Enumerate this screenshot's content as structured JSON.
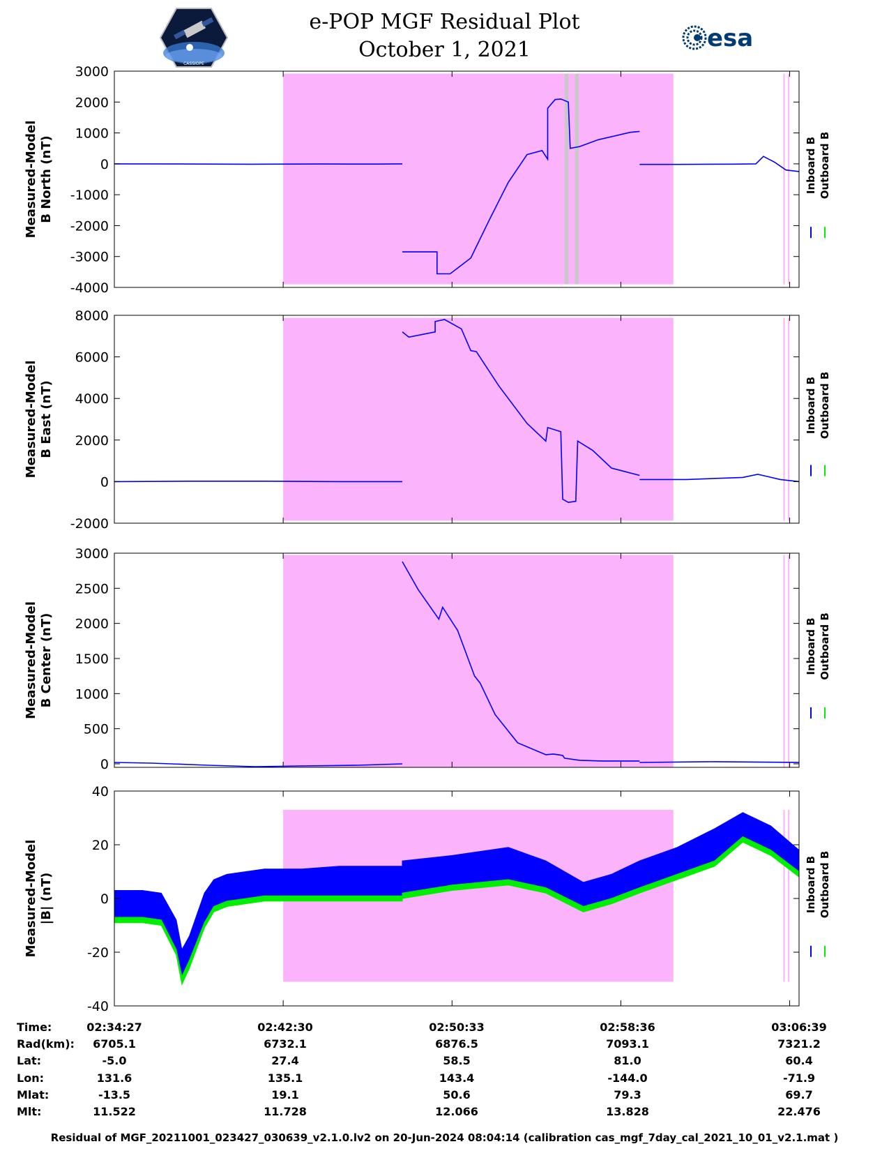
{
  "header": {
    "title_line1": "e-POP MGF Residual Plot",
    "title_line2": "October 1, 2021",
    "left_logo_text": "CASSIOPE",
    "right_logo_text": "esa"
  },
  "colors": {
    "shade": "#fbb3fb",
    "inboard": "#0000ff",
    "outboard": "#00ee00",
    "gap": "#c8c8c8"
  },
  "chart_data": [
    {
      "type": "line",
      "ylabel_line1": "Measured-Model",
      "ylabel_line2": "B North (nT)",
      "ylim": [
        -4000,
        3000
      ],
      "yticks": [
        3000,
        2000,
        1000,
        0,
        -1000,
        -2000,
        -3000,
        -4000
      ],
      "shade_ylim": [
        -3900,
        2920
      ],
      "legend": [
        "Inboard B",
        "Outboard B"
      ],
      "series": [
        {
          "name": "Inboard B",
          "color": "#0000ff",
          "x": [
            0,
            3.6,
            7.3,
            11.0,
            14.0,
            15.35
          ],
          "y": [
            0,
            -5,
            -12,
            -6,
            -8,
            0
          ]
        },
        {
          "name": "Inboard B",
          "color": "#0000ff",
          "x": [
            15.35,
            17.2,
            17.2,
            17.9,
            19.0,
            20.0,
            21.0,
            22.0,
            22.8,
            23.1,
            23.1,
            23.5,
            23.8,
            24.2,
            24.3,
            24.8,
            25.8,
            27.0,
            27.5,
            28.0
          ],
          "y": [
            -2850,
            -2850,
            -3560,
            -3560,
            -3050,
            -1800,
            -600,
            300,
            430,
            150,
            1800,
            2080,
            2100,
            2000,
            500,
            560,
            780,
            950,
            1020,
            1050
          ]
        },
        {
          "name": "Inboard B",
          "color": "#0000ff",
          "x": [
            28.0,
            30.0,
            33.0,
            34.2,
            34.6,
            35.2,
            35.8,
            36.5
          ],
          "y": [
            -20,
            -20,
            -10,
            0,
            240,
            50,
            -200,
            -250
          ]
        }
      ]
    },
    {
      "type": "line",
      "ylabel_line1": "Measured-Model",
      "ylabel_line2": "B East (nT)",
      "ylim": [
        -2000,
        8000
      ],
      "yticks": [
        8000,
        6000,
        4000,
        2000,
        0,
        -2000
      ],
      "shade_ylim": [
        -1880,
        7880
      ],
      "legend": [
        "Inboard B",
        "Outboard B"
      ],
      "series": [
        {
          "name": "Inboard B",
          "color": "#0000ff",
          "x": [
            0,
            4.0,
            8.0,
            12.0,
            15.35
          ],
          "y": [
            0,
            20,
            20,
            0,
            0
          ]
        },
        {
          "name": "Inboard B",
          "color": "#0000ff",
          "x": [
            15.35,
            15.7,
            17.1,
            17.1,
            17.6,
            18.5,
            19.0,
            19.3,
            20.5,
            22.0,
            23.0,
            23.1,
            23.8,
            23.9,
            24.2,
            24.6,
            24.7,
            25.5,
            26.5,
            28.0
          ],
          "y": [
            7200,
            6950,
            7200,
            7700,
            7800,
            7350,
            6300,
            6250,
            4600,
            2800,
            1950,
            2600,
            2400,
            -850,
            -1000,
            -950,
            1950,
            1500,
            650,
            300
          ]
        },
        {
          "name": "Inboard B",
          "color": "#0000ff",
          "x": [
            28.0,
            30.5,
            33.5,
            34.3,
            34.8,
            35.5,
            36.5
          ],
          "y": [
            100,
            100,
            200,
            350,
            250,
            100,
            0
          ]
        }
      ]
    },
    {
      "type": "line",
      "ylabel_line1": "Measured-Model",
      "ylabel_line2": "B Center (nT)",
      "ylim": [
        -50,
        3000
      ],
      "yticks": [
        3000,
        2500,
        2000,
        1500,
        1000,
        500,
        0
      ],
      "shade_ylim": [
        -50,
        2975
      ],
      "legend": [
        "Inboard B",
        "Outboard B"
      ],
      "series": [
        {
          "name": "Inboard B",
          "color": "#0000ff",
          "x": [
            0,
            2.0,
            5.0,
            7.5,
            10.0,
            13.0,
            15.35
          ],
          "y": [
            20,
            10,
            -20,
            -40,
            -30,
            -20,
            0
          ]
        },
        {
          "name": "Inboard B",
          "color": "#0000ff",
          "x": [
            15.35,
            16.2,
            17.3,
            17.5,
            18.3,
            19.2,
            19.5,
            20.3,
            21.5,
            23.0,
            23.4,
            23.9,
            24.0,
            24.8,
            26.0,
            28.0
          ],
          "y": [
            2880,
            2480,
            2060,
            2230,
            1900,
            1250,
            1150,
            700,
            300,
            130,
            140,
            120,
            80,
            50,
            40,
            40
          ]
        },
        {
          "name": "Inboard B",
          "color": "#0000ff",
          "x": [
            28.0,
            32.0,
            36.5
          ],
          "y": [
            20,
            30,
            20
          ]
        }
      ]
    },
    {
      "type": "area",
      "ylabel_line1": "Measured-Model",
      "ylabel_line2": "|B| (nT)",
      "ylim": [
        -40,
        40
      ],
      "yticks": [
        40,
        20,
        0,
        -20,
        -40
      ],
      "shade_ylim": [
        -31,
        33
      ],
      "legend": [
        "Inboard B",
        "Outboard B"
      ],
      "series": [
        {
          "name": "Inboard B",
          "color": "#0000ff",
          "x": [
            0,
            1.5,
            2.5,
            3.3,
            3.6,
            4.0,
            4.8,
            5.3,
            6.0,
            8.0,
            10.0,
            12.0,
            15.35
          ],
          "upper": [
            3,
            3,
            2,
            -8,
            -19,
            -14,
            2,
            7,
            9,
            11,
            11,
            12,
            12
          ],
          "lower": [
            -8,
            -8,
            -9,
            -20,
            -30,
            -24,
            -10,
            -4,
            -2,
            0,
            0,
            0,
            0
          ]
        },
        {
          "name": "Inboard B",
          "color": "#0000ff",
          "x": [
            15.35,
            18.0,
            21.0,
            23.0,
            25.0,
            26.5,
            28.0,
            30.0,
            32.0,
            33.5,
            35.0,
            36.5
          ],
          "upper": [
            14,
            16,
            19,
            14,
            6,
            9,
            14,
            19,
            26,
            32,
            27,
            18
          ],
          "lower": [
            1,
            4,
            6,
            3,
            -4,
            -1,
            3,
            8,
            13,
            22,
            17,
            9
          ]
        },
        {
          "name": "Outboard B",
          "color": "#00ee00",
          "x": [
            0,
            1.5,
            2.5,
            3.3,
            3.6,
            4.0,
            4.8,
            5.3,
            6.0,
            8.0,
            10.0,
            12.0,
            15.35
          ],
          "upper": [
            -7,
            -7,
            -8,
            -19,
            -29,
            -23,
            -9,
            -3,
            -1,
            1,
            1,
            1,
            1
          ],
          "lower": [
            -9,
            -9,
            -10,
            -21,
            -32,
            -26,
            -11,
            -5,
            -3,
            -1,
            -1,
            -1,
            -1
          ]
        },
        {
          "name": "Outboard B",
          "color": "#00ee00",
          "x": [
            15.35,
            18.0,
            21.0,
            23.0,
            25.0,
            26.5,
            28.0,
            30.0,
            32.0,
            33.5,
            35.0,
            36.5
          ],
          "upper": [
            2,
            5,
            7,
            4,
            -3,
            0,
            4,
            9,
            14,
            23,
            18,
            10
          ],
          "lower": [
            0,
            3,
            5,
            2,
            -5,
            -2,
            2,
            7,
            12,
            21,
            16,
            8
          ]
        }
      ]
    }
  ],
  "shared_x": {
    "units": "minutes since 02:34:27",
    "xlim": [
      0,
      36.5
    ],
    "tick_positions": [
      0,
      9,
      18,
      27,
      36
    ],
    "shade_range": [
      9.0,
      29.8
    ],
    "shade_range_right": [
      35.7,
      35.95
    ],
    "gap_ranges": [
      [
        24.0,
        24.2
      ],
      [
        24.55,
        24.75
      ]
    ]
  },
  "ephemeris": {
    "rows": [
      {
        "label": "Time:",
        "values": [
          "02:34:27",
          "02:42:30",
          "02:50:33",
          "02:58:36",
          "03:06:39"
        ]
      },
      {
        "label": "Rad(km):",
        "values": [
          "6705.1",
          "6732.1",
          "6876.5",
          "7093.1",
          "7321.2"
        ]
      },
      {
        "label": "Lat:",
        "values": [
          "-5.0",
          "27.4",
          "58.5",
          "81.0",
          "60.4"
        ]
      },
      {
        "label": "Lon:",
        "values": [
          "131.6",
          "135.1",
          "143.4",
          "-144.0",
          "-71.9"
        ]
      },
      {
        "label": "Mlat:",
        "values": [
          "-13.5",
          "19.1",
          "50.6",
          "79.3",
          "69.7"
        ]
      },
      {
        "label": "Mlt:",
        "values": [
          "11.522",
          "11.728",
          "12.066",
          "13.828",
          "22.476"
        ]
      }
    ]
  },
  "footer": {
    "text": "Residual of MGF_20211001_023427_030639_v2.1.0.lv2 on 20-Jun-2024 08:04:14 (calibration cas_mgf_7day_cal_2021_10_01_v2.1.mat )"
  }
}
